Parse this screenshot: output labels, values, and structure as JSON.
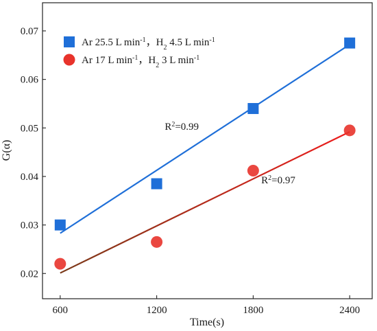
{
  "chart_data": {
    "type": "scatter",
    "xlabel": "Time(s)",
    "ylabel": "G(α)",
    "xlim": [
      490,
      2540
    ],
    "ylim": [
      0.0148,
      0.0758
    ],
    "x_ticks": [
      600,
      1200,
      1800,
      2400
    ],
    "y_ticks": [
      0.02,
      0.03,
      0.04,
      0.05,
      0.06,
      0.07
    ],
    "x_tick_labels": [
      "600",
      "1200",
      "1800",
      "2400"
    ],
    "y_tick_labels": [
      "0.02",
      "0.03",
      "0.04",
      "0.05",
      "0.06",
      "0.07"
    ],
    "grid": false,
    "legend_position": "top-left",
    "series": [
      {
        "name": "Ar 25.5 L min-1，H2 4.5 L min-1",
        "legend_parts": [
          {
            "t": "Ar 25.5 L min",
            "s": "n"
          },
          {
            "t": "-1",
            "s": "sup"
          },
          {
            "t": "，H",
            "s": "n"
          },
          {
            "t": "2",
            "s": "sub"
          },
          {
            "t": " 4.5 L min",
            "s": "n"
          },
          {
            "t": "-1",
            "s": "sup"
          }
        ],
        "marker": "square",
        "color": "#1f6fd8",
        "x": [
          600,
          1200,
          1800,
          2400
        ],
        "y": [
          0.03,
          0.0385,
          0.054,
          0.0675
        ],
        "fit": {
          "x": [
            600,
            2400
          ],
          "y": [
            0.0283,
            0.0672
          ],
          "color": "#1f6fd8"
        }
      },
      {
        "name": "Ar 17 L min-1，H2 3 L min-1",
        "legend_parts": [
          {
            "t": "Ar 17 L min",
            "s": "n"
          },
          {
            "t": "-1",
            "s": "sup"
          },
          {
            "t": "，H",
            "s": "n"
          },
          {
            "t": "2",
            "s": "sub"
          },
          {
            "t": " 3 L min",
            "s": "n"
          },
          {
            "t": "-1",
            "s": "sup"
          }
        ],
        "marker": "circle",
        "color": "#e8332b",
        "x": [
          600,
          1200,
          1800,
          2400
        ],
        "y": [
          0.022,
          0.0265,
          0.0412,
          0.0495
        ],
        "fit": {
          "x": [
            600,
            2400
          ],
          "y": [
            0.0201,
            0.0492
          ],
          "color_start": "#7a3a1a",
          "color_end": "#ee1c1c"
        }
      }
    ],
    "annotations": [
      {
        "parts": [
          {
            "t": "R",
            "s": "n"
          },
          {
            "t": "2",
            "s": "sup"
          },
          {
            "t": "=0.99",
            "s": "n"
          }
        ],
        "x": 1250,
        "y": 0.0496
      },
      {
        "parts": [
          {
            "t": "R",
            "s": "n"
          },
          {
            "t": "2",
            "s": "sup"
          },
          {
            "t": "=0.97",
            "s": "n"
          }
        ],
        "x": 1850,
        "y": 0.0386
      }
    ]
  }
}
